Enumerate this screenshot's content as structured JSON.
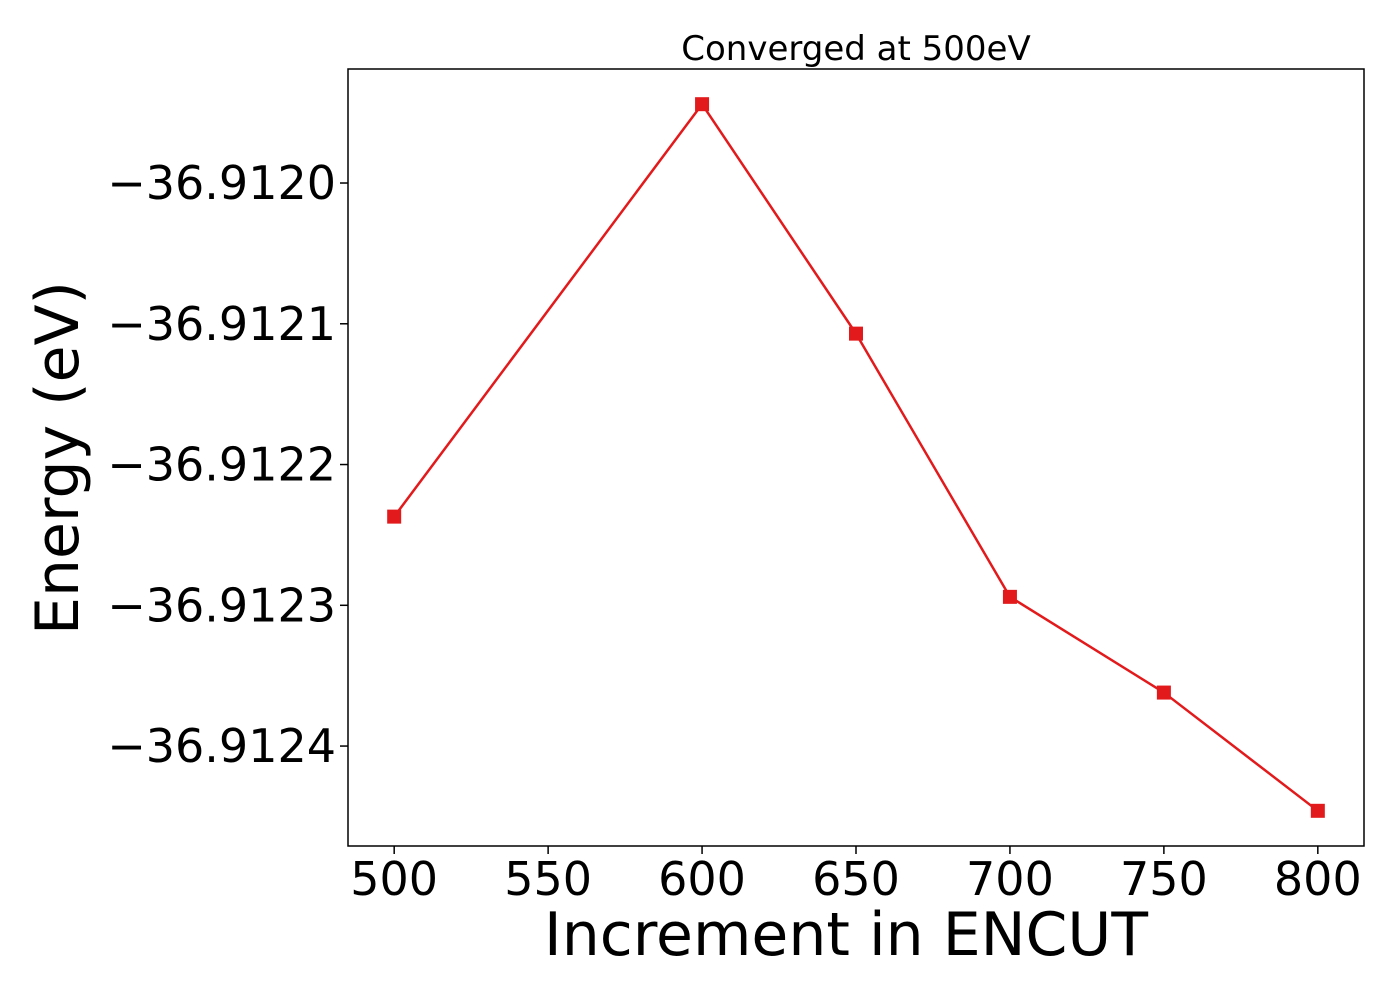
{
  "chart_data": {
    "type": "line",
    "title": "Converged at 500eV",
    "xlabel": "Increment in ENCUT",
    "ylabel": "Energy (eV)",
    "x": [
      500,
      600,
      650,
      700,
      750,
      800
    ],
    "series": [
      {
        "values": [
          -36.912237,
          -36.911944,
          -36.912107,
          -36.912294,
          -36.912362,
          -36.912446
        ],
        "color": "#e31a1c",
        "marker": "square"
      }
    ],
    "xticks": [
      500,
      550,
      600,
      650,
      700,
      750,
      800
    ],
    "xtick_labels": [
      "500",
      "550",
      "600",
      "650",
      700,
      "750",
      "800"
    ],
    "yticks": [
      -36.912,
      -36.9121,
      -36.9122,
      -36.9123,
      -36.9124
    ],
    "ytick_labels": [
      "−36.9120",
      "−36.9121",
      "−36.9122",
      "−36.9123",
      "−36.9124"
    ],
    "xlim": [
      485,
      815
    ],
    "ylim": [
      -36.912471,
      -36.911919
    ],
    "grid": false,
    "legend": false
  }
}
